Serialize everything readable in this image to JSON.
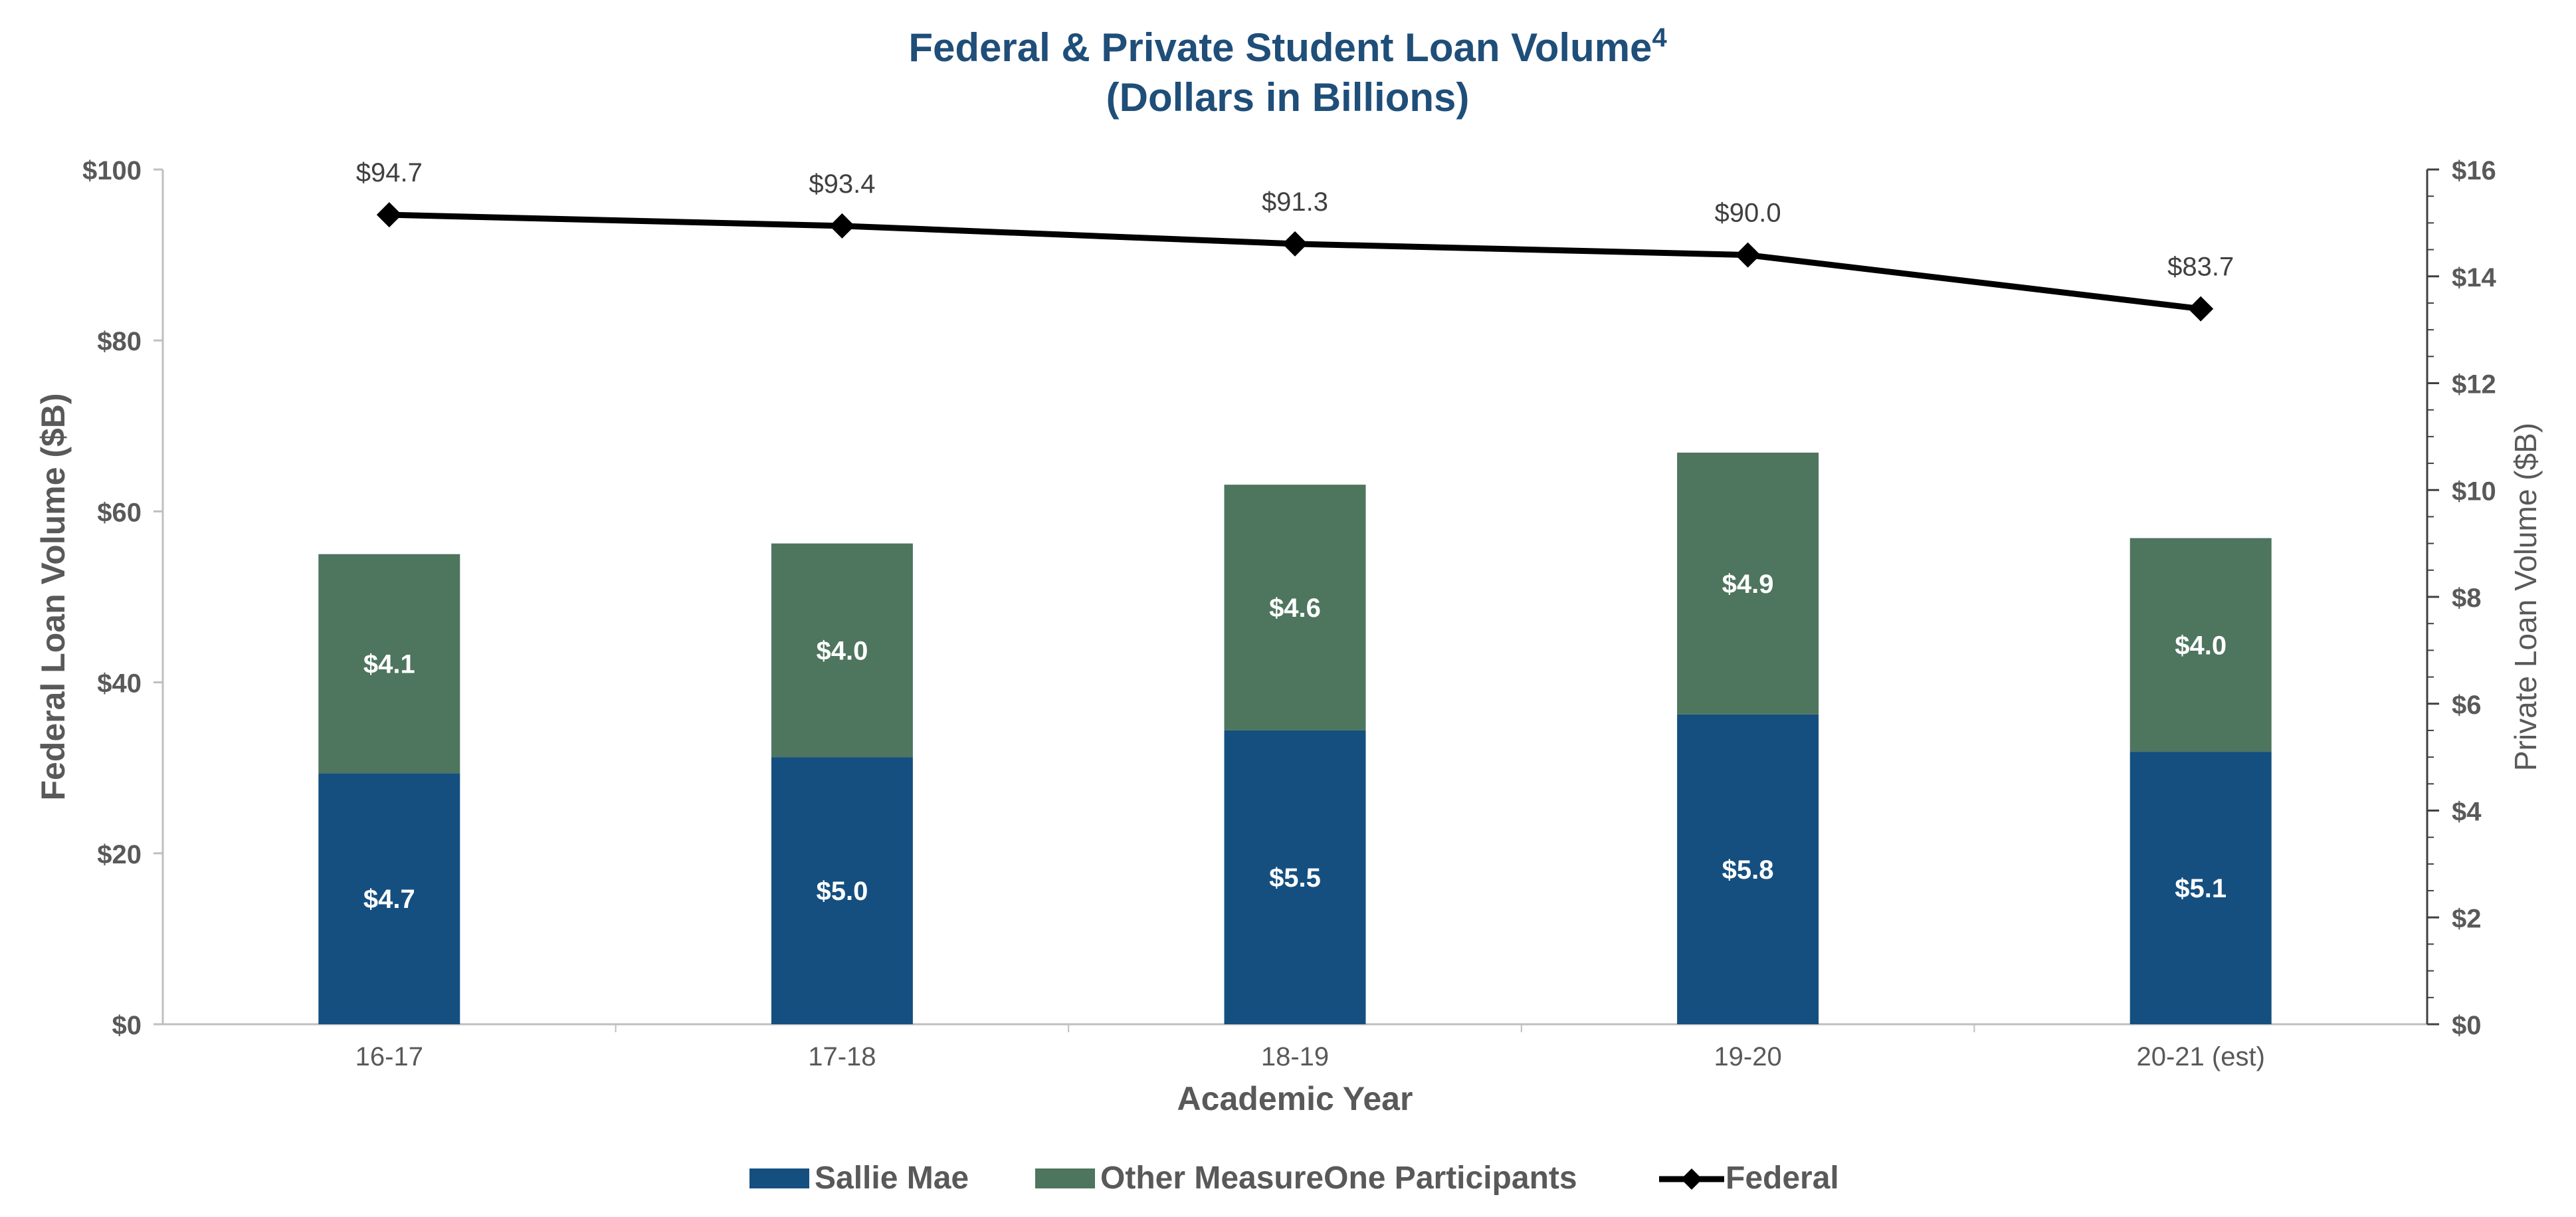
{
  "chart_data": {
    "type": "bar",
    "subtype": "stacked-bar-with-line-dual-axis",
    "title": "Federal & Private Student Loan Volume",
    "title_superscript": "4",
    "subtitle": "(Dollars in Billions)",
    "xlabel": "Academic Year",
    "ylabel_left": "Federal Loan Volume ($B)",
    "ylabel_right": "Private Loan Volume ($B)",
    "categories": [
      "16-17",
      "17-18",
      "18-19",
      "19-20",
      "20-21 (est)"
    ],
    "ylim_left": [
      0,
      100
    ],
    "ylim_right": [
      0,
      16
    ],
    "yticks_left": [
      "$0",
      "$20",
      "$40",
      "$60",
      "$80",
      "$100"
    ],
    "yticks_right": [
      "$0",
      "$2",
      "$4",
      "$6",
      "$8",
      "$10",
      "$12",
      "$14",
      "$16"
    ],
    "grid": false,
    "legend_position": "bottom",
    "series": [
      {
        "name": "Sallie Mae",
        "kind": "bar",
        "axis": "right",
        "color": "#154f80",
        "values": [
          4.7,
          5.0,
          5.5,
          5.8,
          5.1
        ],
        "labels": [
          "$4.7",
          "$5.0",
          "$5.5",
          "$5.8",
          "$5.1"
        ]
      },
      {
        "name": "Other MeasureOne Participants",
        "kind": "bar",
        "axis": "right",
        "color": "#4e755e",
        "values": [
          4.1,
          4.0,
          4.6,
          4.9,
          4.0
        ],
        "labels": [
          "$4.1",
          "$4.0",
          "$4.6",
          "$4.9",
          "$4.0"
        ]
      },
      {
        "name": "Federal",
        "kind": "line",
        "axis": "left",
        "color": "#000000",
        "marker": "diamond",
        "values": [
          94.7,
          93.4,
          91.3,
          90.0,
          83.7
        ],
        "labels": [
          "$94.7",
          "$93.4",
          "$91.3",
          "$90.0",
          "$83.7"
        ]
      }
    ]
  }
}
